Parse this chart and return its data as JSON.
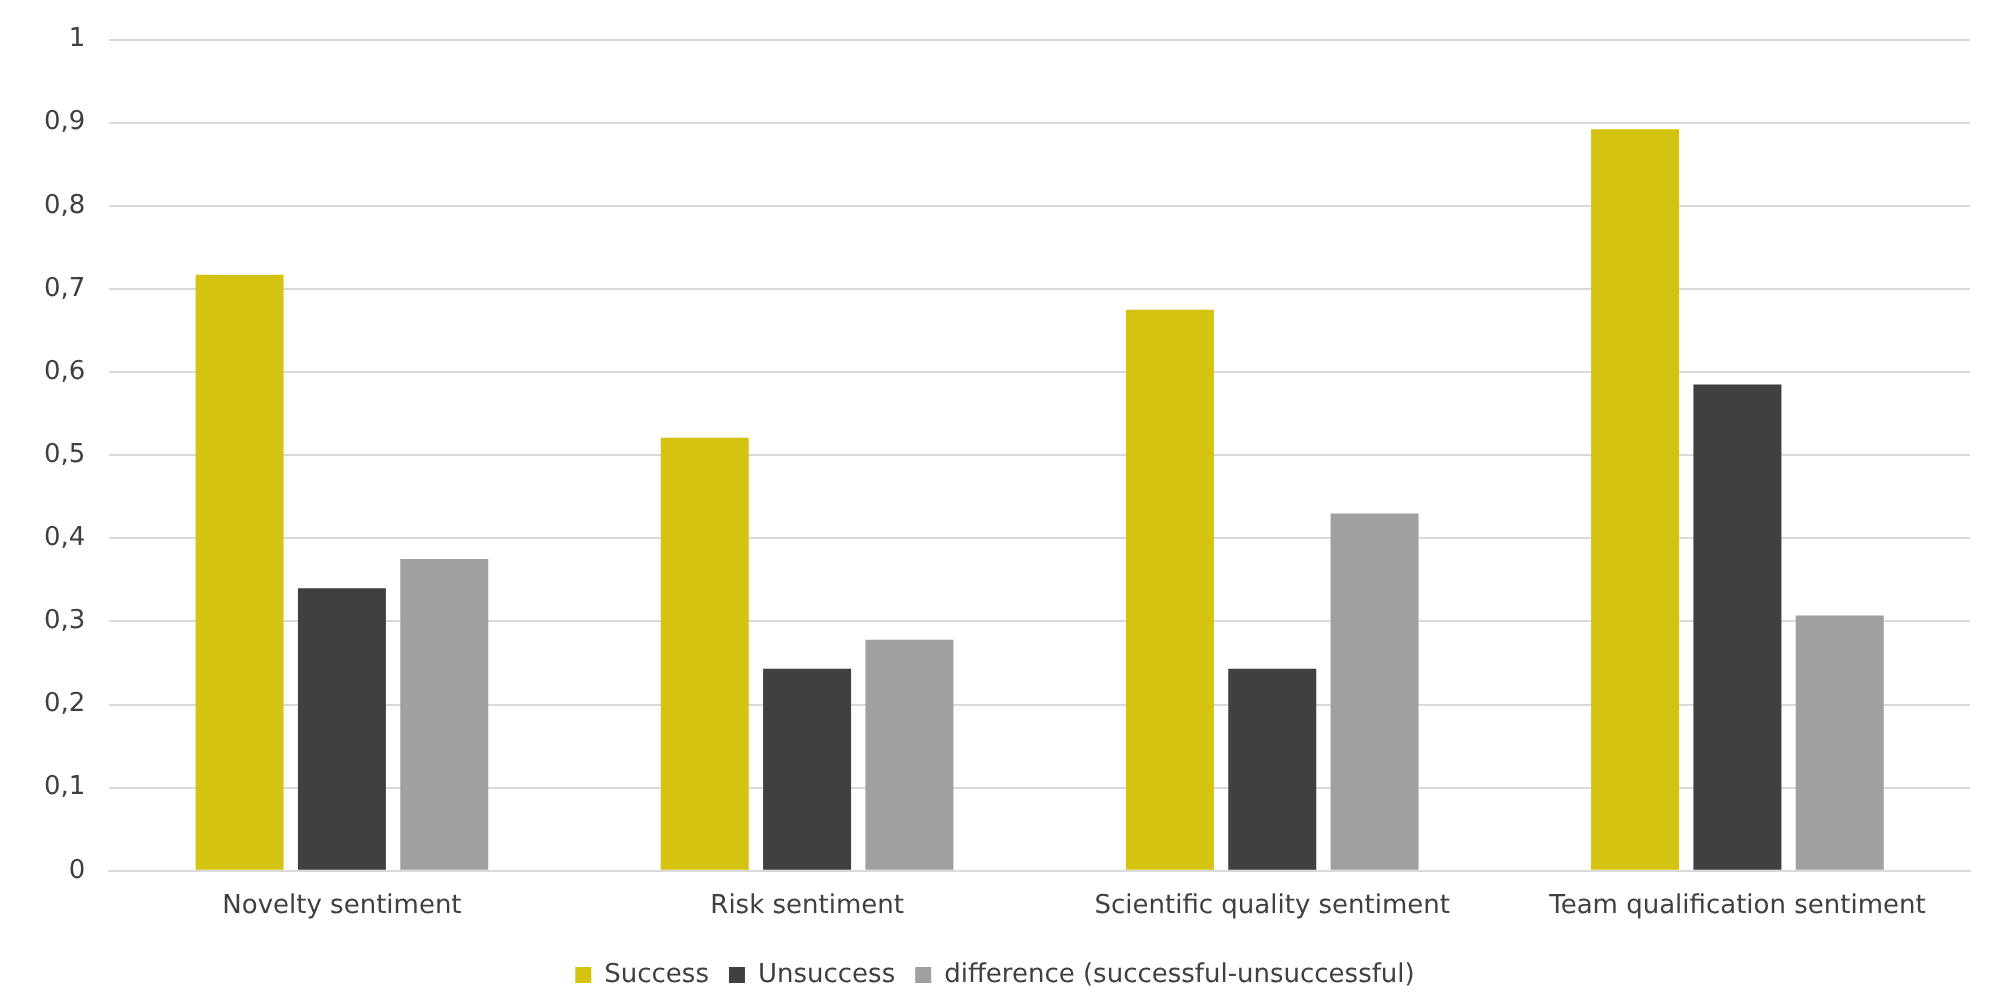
{
  "chart_data": {
    "type": "bar",
    "categories": [
      "Novelty sentiment",
      "Risk sentiment",
      "Scientific quality sentiment",
      "Team qualification sentiment"
    ],
    "series": [
      {
        "name": "Success",
        "color": "#d5c312",
        "values": [
          0.717,
          0.521,
          0.675,
          0.892
        ]
      },
      {
        "name": "Unsuccess",
        "color": "#404040",
        "values": [
          0.34,
          0.243,
          0.243,
          0.585
        ]
      },
      {
        "name": "difference (successful-unsuccessful)",
        "color": "#a0a0a0",
        "values": [
          0.375,
          0.278,
          0.43,
          0.307
        ]
      }
    ],
    "ylim": [
      0,
      1
    ],
    "yticks": [
      0,
      {
        "value": 0.1,
        "label": "0,1"
      },
      {
        "value": 0.2,
        "label": "0,2"
      },
      {
        "value": 0.3,
        "label": "0,3"
      },
      {
        "value": 0.4,
        "label": "0,4"
      },
      {
        "value": 0.5,
        "label": "0,5"
      },
      {
        "value": 0.6,
        "label": "0,6"
      },
      {
        "value": 0.7,
        "label": "0,7"
      },
      {
        "value": 0.8,
        "label": "0,8"
      },
      {
        "value": 0.9,
        "label": "0,9"
      },
      1
    ],
    "grid": "y",
    "legend": "bottom"
  }
}
